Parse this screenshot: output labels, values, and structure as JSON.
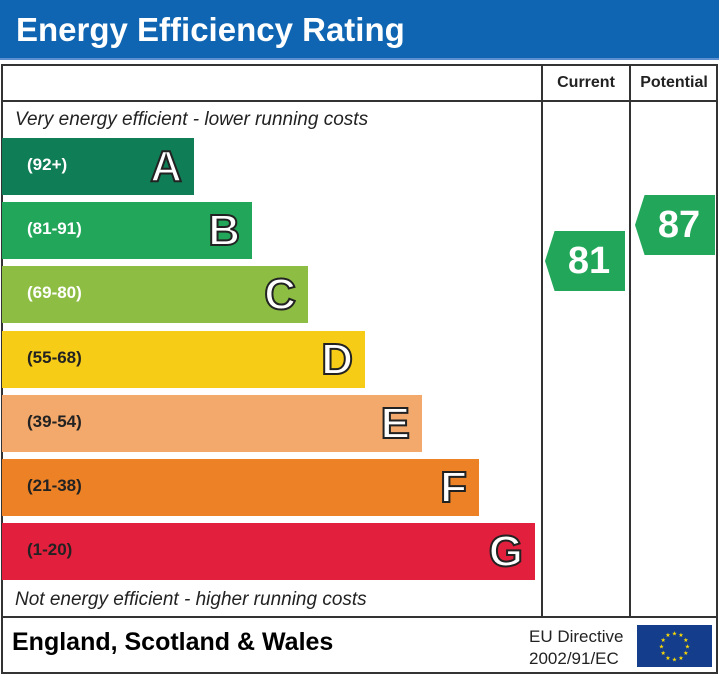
{
  "header": {
    "title": "Energy Efficiency Rating"
  },
  "columns": {
    "current": "Current",
    "potential": "Potential"
  },
  "notes": {
    "top": "Very energy efficient - lower running costs",
    "bottom": "Not energy efficient - higher running costs"
  },
  "chart_data": {
    "type": "bar",
    "title": "Energy Efficiency Rating",
    "categories": [
      "A",
      "B",
      "C",
      "D",
      "E",
      "F",
      "G"
    ],
    "bands": [
      {
        "letter": "A",
        "range": "(92+)",
        "color": "#0f7d56"
      },
      {
        "letter": "B",
        "range": "(81-91)",
        "color": "#22a75a"
      },
      {
        "letter": "C",
        "range": "(69-80)",
        "color": "#8dbe43"
      },
      {
        "letter": "D",
        "range": "(55-68)",
        "color": "#f6cc17"
      },
      {
        "letter": "E",
        "range": "(39-54)",
        "color": "#f2a96b"
      },
      {
        "letter": "F",
        "range": "(21-38)",
        "color": "#ec8126"
      },
      {
        "letter": "G",
        "range": "(1-20)",
        "color": "#e21f3c"
      }
    ],
    "current": {
      "value": "81",
      "band": "B",
      "color": "#22a75a"
    },
    "potential": {
      "value": "87",
      "band": "B",
      "color": "#22a75a"
    }
  },
  "footer": {
    "region": "England, Scotland & Wales",
    "directive_line1": "EU Directive",
    "directive_line2": "2002/91/EC"
  }
}
